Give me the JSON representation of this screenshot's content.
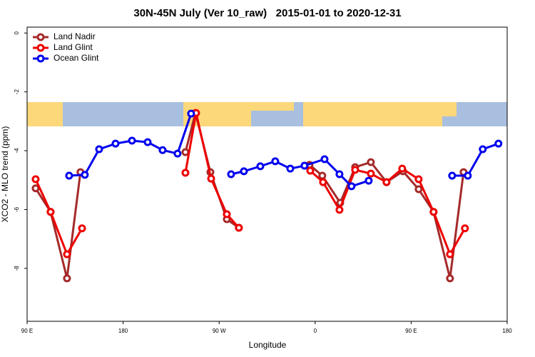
{
  "chart_data": {
    "type": "line",
    "title": "30N-45N July (Ver 10_raw)   2015-01-01 to 2020-12-31",
    "x_label": "Longitude",
    "y_label": "XCO2 - MLO trend (ppm)",
    "xlim": [
      90,
      540
    ],
    "xticks": [
      {
        "value": 90,
        "label": "90 E"
      },
      180,
      {
        "value": 270,
        "label": "90 W"
      },
      {
        "value": 360,
        "label": "0"
      },
      {
        "value": 450,
        "label": "90 E"
      },
      {
        "value": 540,
        "label": "180"
      }
    ],
    "ylim": [
      -9.8,
      0.2
    ],
    "yticks": [
      0,
      -2,
      -4,
      -6,
      -8
    ],
    "legend": "upper left",
    "series": [
      {
        "name": "Land Nadir",
        "color": "#a52a2a",
        "x": [
          98,
          112,
          127.4,
          140,
          null,
          238.4,
          247.8,
          261.8,
          277.2,
          288.5,
          null,
          354.7,
          366.7,
          383.5,
          397.5,
          412.2,
          426.9,
          442.3,
          457,
          471,
          486.4,
          499.1
        ],
        "values": [
          -5.28,
          -6.08,
          -8.34,
          -4.73,
          null,
          -4.05,
          -2.72,
          -4.73,
          -6.33,
          -6.62,
          null,
          -4.48,
          -4.85,
          -5.77,
          -4.56,
          -4.39,
          -5.07,
          -4.7,
          -5.31,
          -6.08,
          -8.34,
          -4.73
        ]
      },
      {
        "name": "Land Glint",
        "color": "#ee0000",
        "x": [
          98,
          112,
          127.4,
          141.5,
          null,
          238.4,
          248.4,
          262.5,
          277.2,
          288.5,
          null,
          355.4,
          367.4,
          382.8,
          397.5,
          412.2,
          426.9,
          441.6,
          457,
          471,
          486.4,
          500.4
        ],
        "values": [
          -4.97,
          -6.08,
          -7.52,
          -6.64,
          null,
          -4.75,
          -2.72,
          -4.95,
          -6.16,
          -6.62,
          null,
          -4.68,
          -5.07,
          -6.01,
          -4.65,
          -4.78,
          -5.07,
          -4.61,
          -4.97,
          -6.08,
          -7.52,
          -6.64
        ]
      },
      {
        "name": "Ocean Glint",
        "color": "#0000ee",
        "x": [
          129.4,
          144.1,
          157.5,
          172.9,
          188.3,
          203,
          217,
          231,
          243.7,
          null,
          281.2,
          293.2,
          308.6,
          322.6,
          336.7,
          350,
          368.8,
          382.8,
          394.1,
          410.2,
          null,
          488.4,
          503.1,
          517.1,
          531.8
        ],
        "values": [
          -4.85,
          -4.82,
          -3.95,
          -3.76,
          -3.66,
          -3.71,
          -3.98,
          -4.1,
          -2.74,
          null,
          -4.8,
          -4.7,
          -4.53,
          -4.36,
          -4.61,
          -4.51,
          -4.29,
          -4.8,
          -5.21,
          -5.02,
          null,
          -4.85,
          -4.85,
          -3.95,
          -3.76
        ]
      }
    ]
  }
}
